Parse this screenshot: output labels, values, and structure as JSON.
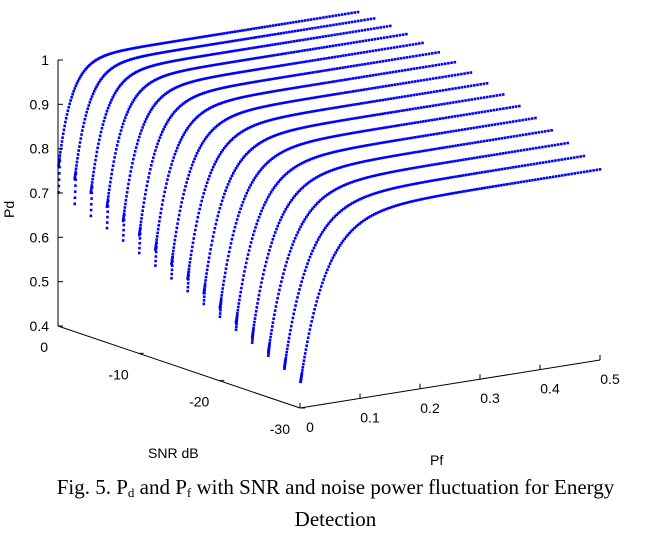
{
  "caption": {
    "prefix": "Fig. 5. P",
    "sub_d": "d",
    "and": " and P",
    "sub_f": "f",
    "rest_line1": "  with SNR and noise power fluctuation for Energy",
    "rest_line2": "Detection"
  },
  "chart_data": {
    "type": "scatter3d",
    "title": "",
    "xlabel": "Pf",
    "ylabel": "SNR dB",
    "zlabel": "Pd",
    "xlim": [
      0,
      0.5
    ],
    "ylim": [
      -30,
      0
    ],
    "zlim": [
      0.4,
      1
    ],
    "x_ticks": [
      "0",
      "0.1",
      "0.2",
      "0.3",
      "0.4",
      "0.5"
    ],
    "y_ticks": [
      "0",
      "-10",
      "-20",
      "-30"
    ],
    "z_ticks": [
      "0.4",
      "0.5",
      "0.6",
      "0.7",
      "0.8",
      "0.9",
      "1"
    ],
    "marker_color": "#0000ff",
    "grid": false,
    "series_description_values": {
      "pf_range": [
        0.001,
        0.5
      ],
      "snr_levels_db": [
        0,
        -2,
        -4,
        -6,
        -8,
        -10,
        -12,
        -14,
        -16,
        -18,
        -20,
        -22,
        -24,
        -26,
        -28,
        -30
      ],
      "pd_range": [
        0.42,
        1.0
      ]
    }
  }
}
